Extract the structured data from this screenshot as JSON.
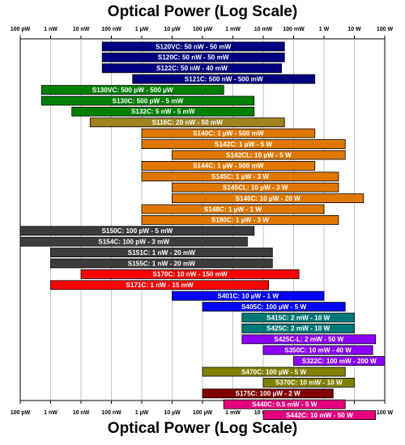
{
  "chart_data": {
    "type": "bar",
    "orientation": "horizontal-range",
    "title": "Optical Power (Log Scale)",
    "xlabel": "Optical Power (Log Scale)",
    "x_scale": "log",
    "x_unit": "W",
    "xlim": [
      1e-10,
      100
    ],
    "grid": true,
    "x_tick_labels": [
      "100 pW",
      "1 nW",
      "10 nW",
      "100 nW",
      "1 µW",
      "10 µW",
      "100 µW",
      "1 mW",
      "10 mW",
      "100 mW",
      "1 W",
      "10 W",
      "100 W"
    ],
    "bars": [
      {
        "label": "S120VC: 50 nW - 50 mW",
        "min": 5e-08,
        "max": 0.05,
        "color": "#000080"
      },
      {
        "label": "S120C: 50 nW - 50 mW",
        "min": 5e-08,
        "max": 0.05,
        "color": "#000080"
      },
      {
        "label": "S122C: 50 nW - 40 mW",
        "min": 5e-08,
        "max": 0.04,
        "color": "#000080"
      },
      {
        "label": "S121C: 500 nW - 500 mW",
        "min": 5e-07,
        "max": 0.5,
        "color": "#000080"
      },
      {
        "label": "S130VC: 500 pW - 500 µW",
        "min": 5e-10,
        "max": 0.0005,
        "color": "#008000"
      },
      {
        "label": "S130C: 500 pW - 5 mW",
        "min": 5e-10,
        "max": 0.005,
        "color": "#008000"
      },
      {
        "label": "S132C: 5 nW - 5 mW",
        "min": 5e-09,
        "max": 0.005,
        "color": "#008000"
      },
      {
        "label": "S116C: 20 nW - 50 mW",
        "min": 2e-08,
        "max": 0.05,
        "color": "#A0841E"
      },
      {
        "label": "S140C: 1 µW - 500 mW",
        "min": 1e-06,
        "max": 0.5,
        "color": "#E07800"
      },
      {
        "label": "S142C: 1 µW - 5 W",
        "min": 1e-06,
        "max": 5,
        "color": "#E07800"
      },
      {
        "label": "S142CL: 10 µW - 5 W",
        "min": 1e-05,
        "max": 5,
        "color": "#E07800"
      },
      {
        "label": "S144C: 1 µW - 500 mW",
        "min": 1e-06,
        "max": 0.5,
        "color": "#E07800"
      },
      {
        "label": "S145C: 1 µW - 3 W",
        "min": 1e-06,
        "max": 3,
        "color": "#E07800"
      },
      {
        "label": "S145CL: 10 µW - 3 W",
        "min": 1e-05,
        "max": 3,
        "color": "#E07800"
      },
      {
        "label": "S146C: 10 µW - 20 W",
        "min": 1e-05,
        "max": 20,
        "color": "#E07800"
      },
      {
        "label": "S148C: 1 µW - 1 W",
        "min": 1e-06,
        "max": 1,
        "color": "#E07800"
      },
      {
        "label": "S180C: 1 µW - 3 W",
        "min": 1e-06,
        "max": 3,
        "color": "#E07800"
      },
      {
        "label": "S150C: 100 pW - 5 mW",
        "min": 1e-10,
        "max": 0.005,
        "color": "#3C3C3C"
      },
      {
        "label": "S154C: 100 pW - 3 mW",
        "min": 1e-10,
        "max": 0.003,
        "color": "#3C3C3C"
      },
      {
        "label": "S151C: 1 nW - 20 mW",
        "min": 1e-09,
        "max": 0.02,
        "color": "#3C3C3C"
      },
      {
        "label": "S155C: 1 nW - 20 mW",
        "min": 1e-09,
        "max": 0.02,
        "color": "#3C3C3C"
      },
      {
        "label": "S170C: 10 nW - 150 mW",
        "min": 1e-08,
        "max": 0.15,
        "color": "#FF0000"
      },
      {
        "label": "S171C: 1 nW - 15 mW",
        "min": 1e-09,
        "max": 0.015,
        "color": "#FF0000"
      },
      {
        "label": "S401C: 10 µW - 1 W",
        "min": 1e-05,
        "max": 1,
        "color": "#0000FF"
      },
      {
        "label": "S405C: 100 µW - 5 W",
        "min": 0.0001,
        "max": 5,
        "color": "#0000FF"
      },
      {
        "label": "S415C: 2 mW - 10 W",
        "min": 0.002,
        "max": 10,
        "color": "#007878"
      },
      {
        "label": "S425C: 2 mW - 10 W",
        "min": 0.002,
        "max": 10,
        "color": "#007878"
      },
      {
        "label": "S425C-L: 2 mW - 50 W",
        "min": 0.002,
        "max": 50,
        "color": "#8C00FF"
      },
      {
        "label": "S350C: 10 mW - 40 W",
        "min": 0.01,
        "max": 40,
        "color": "#8C00FF"
      },
      {
        "label": "S322C: 100 mW - 200 W",
        "min": 0.1,
        "max": 200,
        "color": "#8C00FF"
      },
      {
        "label": "S470C: 100 µW - 5 W",
        "min": 0.0001,
        "max": 5,
        "color": "#808000"
      },
      {
        "label": "S370C: 10 mW - 10 W",
        "min": 0.01,
        "max": 10,
        "color": "#808000"
      },
      {
        "label": "S175C: 100 µW - 2 W",
        "min": 0.0001,
        "max": 2,
        "color": "#800000"
      },
      {
        "label": "S440C: 0.5 mW - 5 W",
        "min": 0.0005,
        "max": 5,
        "color": "#E6007E"
      },
      {
        "label": "S442C: 10 mW - 50 W",
        "min": 0.01,
        "max": 50,
        "color": "#E6007E"
      }
    ]
  }
}
